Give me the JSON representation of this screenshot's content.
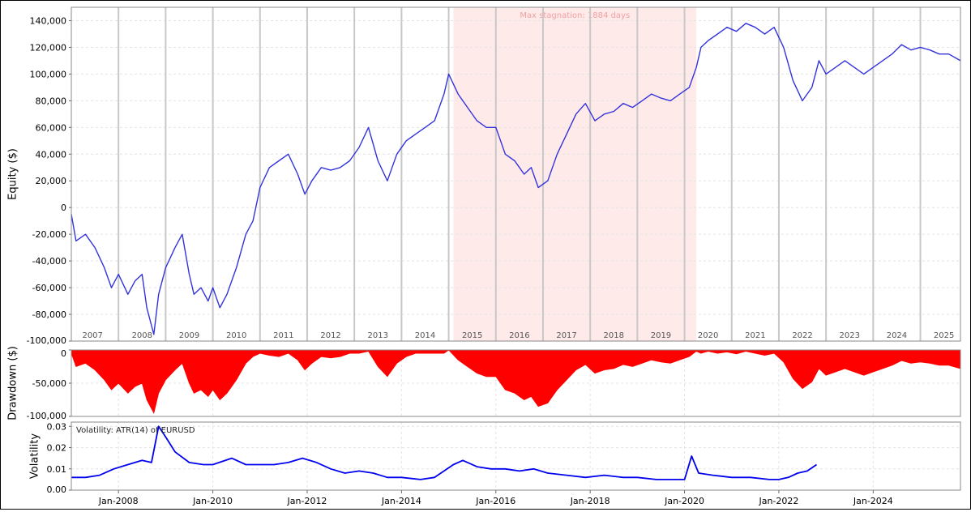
{
  "colors": {
    "equity": "#3333dd",
    "drawdown": "#ff0000",
    "volatility": "#0000ee",
    "stagnation_band": "#ffeaea",
    "stagnation_text": "#f0a0a0",
    "year_line": "#c8c8c8",
    "grid": "#e4e4e4"
  },
  "chart_data": [
    {
      "type": "line",
      "id": "equity",
      "ylabel": "Equity ($)",
      "ylim": [
        -100000,
        150000
      ],
      "yticks": [
        140000,
        120000,
        100000,
        80000,
        60000,
        40000,
        20000,
        0,
        -20000,
        -40000,
        -60000,
        -80000,
        -100000
      ],
      "ytick_labels": [
        "140,000",
        "120,000",
        "100,000",
        "80,000",
        "60,000",
        "40,000",
        "20,000",
        "0",
        "-20,000",
        "-40,000",
        "-60,000",
        "-80,000",
        "-100,000"
      ],
      "xlim": [
        2007.0,
        2025.85
      ],
      "year_labels": [
        "2007",
        "2008",
        "2009",
        "2010",
        "2011",
        "2012",
        "2013",
        "2014",
        "2015",
        "2016",
        "2017",
        "2018",
        "2019",
        "2020",
        "2021",
        "2022",
        "2023",
        "2024",
        "2025"
      ],
      "year_boundaries": [
        2008,
        2009,
        2010,
        2011,
        2012,
        2013,
        2014,
        2015,
        2016,
        2017,
        2018,
        2019,
        2020,
        2021,
        2022,
        2023,
        2024,
        2025
      ],
      "stagnation": {
        "start": 2015.1,
        "end": 2020.25,
        "label": "Max stagnation:  1884 days"
      },
      "series": [
        {
          "x": [
            2007.0,
            2007.1,
            2007.3,
            2007.5,
            2007.7,
            2007.85,
            2008.0,
            2008.2,
            2008.35,
            2008.5,
            2008.6,
            2008.75,
            2008.85,
            2009.0,
            2009.2,
            2009.35,
            2009.5,
            2009.6,
            2009.75,
            2009.9,
            2010.0,
            2010.15,
            2010.3,
            2010.5,
            2010.7,
            2010.85,
            2011.0,
            2011.2,
            2011.4,
            2011.6,
            2011.8,
            2011.95,
            2012.1,
            2012.3,
            2012.5,
            2012.7,
            2012.9,
            2013.1,
            2013.3,
            2013.5,
            2013.7,
            2013.9,
            2014.1,
            2014.3,
            2014.5,
            2014.7,
            2014.9,
            2015.0,
            2015.2,
            2015.4,
            2015.6,
            2015.8,
            2016.0,
            2016.2,
            2016.4,
            2016.6,
            2016.75,
            2016.9,
            2017.1,
            2017.3,
            2017.5,
            2017.7,
            2017.9,
            2018.1,
            2018.3,
            2018.5,
            2018.7,
            2018.9,
            2019.1,
            2019.3,
            2019.5,
            2019.7,
            2019.9,
            2020.1,
            2020.25,
            2020.35,
            2020.5,
            2020.7,
            2020.9,
            2021.1,
            2021.3,
            2021.5,
            2021.7,
            2021.9,
            2022.1,
            2022.3,
            2022.5,
            2022.7,
            2022.85,
            2023.0,
            2023.2,
            2023.4,
            2023.6,
            2023.8,
            2024.0,
            2024.2,
            2024.4,
            2024.6,
            2024.8,
            2025.0,
            2025.2,
            2025.4,
            2025.6,
            2025.85
          ],
          "y": [
            -5000,
            -25000,
            -20000,
            -30000,
            -45000,
            -60000,
            -50000,
            -65000,
            -55000,
            -50000,
            -75000,
            -95000,
            -65000,
            -45000,
            -30000,
            -20000,
            -50000,
            -65000,
            -60000,
            -70000,
            -60000,
            -75000,
            -65000,
            -45000,
            -20000,
            -10000,
            15000,
            30000,
            35000,
            40000,
            25000,
            10000,
            20000,
            30000,
            28000,
            30000,
            35000,
            45000,
            60000,
            35000,
            20000,
            40000,
            50000,
            55000,
            60000,
            65000,
            85000,
            100000,
            85000,
            75000,
            65000,
            60000,
            60000,
            40000,
            35000,
            25000,
            30000,
            15000,
            20000,
            40000,
            55000,
            70000,
            78000,
            65000,
            70000,
            72000,
            78000,
            75000,
            80000,
            85000,
            82000,
            80000,
            85000,
            90000,
            105000,
            120000,
            125000,
            130000,
            135000,
            132000,
            138000,
            135000,
            130000,
            135000,
            120000,
            95000,
            80000,
            90000,
            110000,
            100000,
            105000,
            110000,
            105000,
            100000,
            105000,
            110000,
            115000,
            122000,
            118000,
            120000,
            118000,
            115000,
            115000,
            110000
          ]
        }
      ]
    },
    {
      "type": "area",
      "id": "drawdown",
      "ylabel": "Drawdown ($)",
      "ylim": [
        -100000,
        0
      ],
      "yticks": [
        0,
        -50000,
        -100000
      ],
      "ytick_labels": [
        "0",
        "-50,000",
        "-100,000"
      ],
      "xlim": [
        2007.0,
        2025.85
      ],
      "series": [
        {
          "x": [
            2007.0,
            2007.1,
            2007.3,
            2007.5,
            2007.7,
            2007.85,
            2008.0,
            2008.2,
            2008.35,
            2008.5,
            2008.6,
            2008.75,
            2008.85,
            2009.0,
            2009.2,
            2009.35,
            2009.5,
            2009.6,
            2009.75,
            2009.9,
            2010.0,
            2010.15,
            2010.3,
            2010.5,
            2010.7,
            2010.85,
            2011.0,
            2011.2,
            2011.4,
            2011.6,
            2011.8,
            2011.95,
            2012.1,
            2012.3,
            2012.5,
            2012.7,
            2012.9,
            2013.1,
            2013.3,
            2013.5,
            2013.7,
            2013.9,
            2014.1,
            2014.3,
            2014.5,
            2014.7,
            2014.9,
            2015.0,
            2015.2,
            2015.4,
            2015.6,
            2015.8,
            2016.0,
            2016.2,
            2016.4,
            2016.6,
            2016.75,
            2016.9,
            2017.1,
            2017.3,
            2017.5,
            2017.7,
            2017.9,
            2018.1,
            2018.3,
            2018.5,
            2018.7,
            2018.9,
            2019.1,
            2019.3,
            2019.5,
            2019.7,
            2019.9,
            2020.1,
            2020.25,
            2020.35,
            2020.5,
            2020.7,
            2020.9,
            2021.1,
            2021.3,
            2021.5,
            2021.7,
            2021.9,
            2022.1,
            2022.3,
            2022.5,
            2022.7,
            2022.85,
            2023.0,
            2023.2,
            2023.4,
            2023.6,
            2023.8,
            2024.0,
            2024.2,
            2024.4,
            2024.6,
            2024.8,
            2025.0,
            2025.2,
            2025.4,
            2025.6,
            2025.85
          ],
          "y": [
            -5000,
            -25000,
            -20000,
            -30000,
            -45000,
            -60000,
            -50000,
            -65000,
            -55000,
            -50000,
            -75000,
            -95000,
            -65000,
            -45000,
            -30000,
            -20000,
            -50000,
            -65000,
            -60000,
            -70000,
            -60000,
            -75000,
            -65000,
            -45000,
            -20000,
            -10000,
            -5000,
            -8000,
            -10000,
            -5000,
            -15000,
            -30000,
            -20000,
            -10000,
            -12000,
            -10000,
            -5000,
            -5000,
            -2000,
            -25000,
            -40000,
            -20000,
            -10000,
            -5000,
            -5000,
            -5000,
            -5000,
            0,
            -15000,
            -25000,
            -35000,
            -40000,
            -40000,
            -60000,
            -65000,
            -75000,
            -70000,
            -85000,
            -80000,
            -60000,
            -45000,
            -30000,
            -22000,
            -35000,
            -30000,
            -28000,
            -22000,
            -25000,
            -20000,
            -15000,
            -18000,
            -20000,
            -15000,
            -10000,
            -2000,
            -5000,
            -2000,
            -5000,
            -3000,
            -6000,
            -2000,
            -5000,
            -8000,
            -5000,
            -18000,
            -43000,
            -58000,
            -48000,
            -28000,
            -38000,
            -33000,
            -28000,
            -33000,
            -38000,
            -33000,
            -28000,
            -23000,
            -16000,
            -20000,
            -18000,
            -20000,
            -23000,
            -23000,
            -28000
          ]
        }
      ]
    },
    {
      "type": "line",
      "id": "volatility",
      "title": "Volatility: ATR(14) of EURUSD",
      "ylabel": "Volatility",
      "ylim": [
        0,
        0.032
      ],
      "yticks": [
        0.03,
        0.02,
        0.01,
        0.0
      ],
      "ytick_labels": [
        "0.03",
        "0.02",
        "0.01",
        "0.00"
      ],
      "xlim": [
        2007.0,
        2025.85
      ],
      "xticks": [
        2008.0,
        2010.0,
        2012.0,
        2014.0,
        2016.0,
        2018.0,
        2020.0,
        2022.0,
        2024.0
      ],
      "xtick_labels": [
        "Jan-2008",
        "Jan-2010",
        "Jan-2012",
        "Jan-2014",
        "Jan-2016",
        "Jan-2018",
        "Jan-2020",
        "Jan-2022",
        "Jan-2024"
      ],
      "series": [
        {
          "x": [
            2007.0,
            2007.3,
            2007.6,
            2007.9,
            2008.2,
            2008.5,
            2008.7,
            2008.85,
            2009.0,
            2009.2,
            2009.5,
            2009.8,
            2010.0,
            2010.4,
            2010.7,
            2011.0,
            2011.3,
            2011.6,
            2011.9,
            2012.2,
            2012.5,
            2012.8,
            2013.1,
            2013.4,
            2013.7,
            2014.0,
            2014.4,
            2014.7,
            2014.9,
            2015.1,
            2015.3,
            2015.6,
            2015.9,
            2016.2,
            2016.5,
            2016.8,
            2017.1,
            2017.5,
            2017.9,
            2018.3,
            2018.7,
            2019.0,
            2019.4,
            2019.8,
            2020.0,
            2020.15,
            2020.3,
            2020.6,
            2021.0,
            2021.4,
            2021.8,
            2022.0,
            2022.2,
            2022.4,
            2022.6,
            2022.8
          ],
          "y": [
            0.006,
            0.006,
            0.007,
            0.01,
            0.012,
            0.014,
            0.013,
            0.03,
            0.025,
            0.018,
            0.013,
            0.012,
            0.012,
            0.015,
            0.012,
            0.012,
            0.012,
            0.013,
            0.015,
            0.013,
            0.01,
            0.008,
            0.009,
            0.008,
            0.006,
            0.006,
            0.005,
            0.006,
            0.009,
            0.012,
            0.014,
            0.011,
            0.01,
            0.01,
            0.009,
            0.01,
            0.008,
            0.007,
            0.006,
            0.007,
            0.006,
            0.006,
            0.005,
            0.005,
            0.005,
            0.016,
            0.008,
            0.007,
            0.006,
            0.006,
            0.005,
            0.005,
            0.006,
            0.008,
            0.009,
            0.012
          ]
        }
      ]
    }
  ]
}
